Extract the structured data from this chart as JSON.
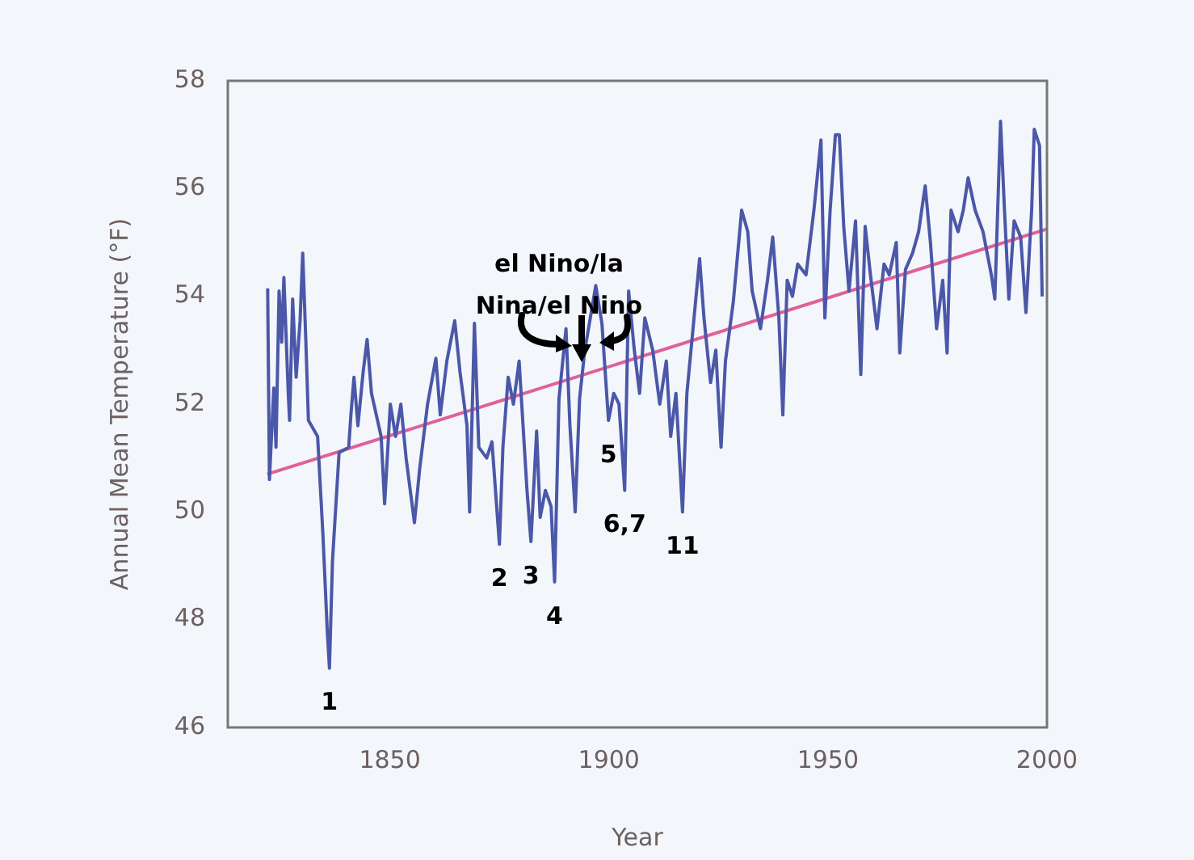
{
  "chart_data": {
    "type": "line",
    "xlabel": "Year",
    "ylabel": "Annual Mean Temperature (°F)",
    "xlim": [
      1813,
      2000
    ],
    "ylim": [
      46,
      58
    ],
    "xticks": [
      1850,
      1900,
      1950,
      2000
    ],
    "yticks": [
      46,
      48,
      50,
      52,
      54,
      56,
      58
    ],
    "legend": false,
    "series": [
      {
        "color": "#4b57a8",
        "x": [
          1822.1,
          1822.5,
          1823.5,
          1824,
          1824.7,
          1825.3,
          1825.8,
          1826.8,
          1827.1,
          1827.8,
          1828.6,
          1829.5,
          1830.1,
          1830.8,
          1831.4,
          1833.5,
          1834.7,
          1835.7,
          1836.2,
          1836.9,
          1838.4,
          1840.6,
          1841.1,
          1841.8,
          1842.7,
          1843.9,
          1844.8,
          1845.8,
          1848,
          1848.8,
          1850.1,
          1851.3,
          1852.5,
          1853.7,
          1855.6,
          1856.8,
          1858.6,
          1860.5,
          1861.5,
          1863,
          1864.8,
          1866,
          1867.6,
          1868.2,
          1869.3,
          1870.3,
          1872.1,
          1873.3,
          1875,
          1875.8,
          1877,
          1878.2,
          1879.5,
          1881.3,
          1882.2,
          1883.5,
          1884.3,
          1885.5,
          1886.8,
          1887.6,
          1888.6,
          1890.2,
          1891.1,
          1892.3,
          1893.3,
          1894.5,
          1897,
          1898.4,
          1899.9,
          1901.1,
          1902.3,
          1903.6,
          1904.5,
          1905.8,
          1907,
          1908.2,
          1910,
          1911.6,
          1913.1,
          1914.1,
          1915.3,
          1916.8,
          1917.8,
          1919.2,
          1920.7,
          1921.7,
          1923.2,
          1924.4,
          1925.6,
          1926.6,
          1928.4,
          1930.3,
          1931.7,
          1932.7,
          1934.6,
          1936.2,
          1937.4,
          1938.8,
          1939.7,
          1940.7,
          1941.9,
          1943.1,
          1945,
          1946.8,
          1948.4,
          1949.3,
          1950.5,
          1951.7,
          1952.6,
          1953.6,
          1954.8,
          1956.3,
          1957.5,
          1958.5,
          1959.7,
          1961.2,
          1962.8,
          1964,
          1965.6,
          1966.4,
          1967.7,
          1969.3,
          1970.7,
          1972.2,
          1973.4,
          1974.8,
          1976.2,
          1977.2,
          1978.1,
          1979.7,
          1980.9,
          1982,
          1983.6,
          1985.4,
          1987.3,
          1988.1,
          1989.4,
          1990.3,
          1991.3,
          1992.5,
          1994,
          1995.2,
          1996.5,
          1997.1,
          1998.3,
          1998.9
        ],
        "values": [
          54.15,
          50.6,
          52.3,
          51.2,
          54.1,
          53.15,
          54.35,
          52.2,
          51.7,
          53.95,
          52.5,
          53.55,
          54.8,
          53.2,
          51.7,
          51.4,
          49.6,
          47.8,
          47.1,
          49.1,
          51.1,
          51.2,
          51.8,
          52.5,
          51.6,
          52.6,
          53.2,
          52.2,
          51.4,
          50.15,
          52.0,
          51.4,
          52.0,
          51.0,
          49.8,
          50.8,
          52.0,
          52.85,
          51.8,
          52.8,
          53.55,
          52.6,
          51.6,
          50.0,
          53.5,
          51.2,
          51.0,
          51.3,
          49.4,
          51.2,
          52.5,
          52.0,
          52.8,
          50.4,
          49.45,
          51.5,
          49.9,
          50.4,
          50.1,
          48.7,
          52.1,
          53.4,
          51.6,
          50.0,
          52.1,
          53.0,
          54.2,
          53.5,
          51.7,
          52.2,
          52.0,
          50.4,
          54.1,
          53.0,
          52.2,
          53.6,
          53.0,
          52.0,
          52.8,
          51.4,
          52.2,
          50.0,
          52.2,
          53.4,
          54.7,
          53.6,
          52.4,
          53.0,
          51.2,
          52.8,
          53.9,
          55.6,
          55.2,
          54.1,
          53.4,
          54.3,
          55.1,
          53.6,
          51.8,
          54.3,
          54.0,
          54.6,
          54.4,
          55.6,
          56.9,
          53.6,
          55.6,
          57.0,
          57.0,
          55.3,
          54.1,
          55.4,
          52.55,
          55.3,
          54.4,
          53.4,
          54.6,
          54.4,
          55.0,
          52.95,
          54.5,
          54.8,
          55.2,
          56.05,
          55.0,
          53.4,
          54.3,
          52.95,
          55.6,
          55.2,
          55.6,
          56.2,
          55.6,
          55.2,
          54.4,
          53.95,
          57.25,
          55.6,
          53.95,
          55.4,
          55.1,
          53.7,
          55.6,
          57.1,
          56.8,
          54.0
        ]
      },
      {
        "color": "#e0609a",
        "x": [
          1822,
          2000
        ],
        "values": [
          50.7,
          55.25
        ]
      }
    ],
    "annotations": [
      "el Nino/la\nNina/el Nino",
      {
        "text": "1",
        "x": 1836.2,
        "y": 47.1
      },
      {
        "text": "2",
        "x": 1875,
        "y": 49.4
      },
      {
        "text": "3",
        "x": 1882.2,
        "y": 49.45
      },
      {
        "text": "4",
        "x": 1887.6,
        "y": 48.7
      },
      {
        "text": "5",
        "x": 1899.9,
        "y": 51.7
      },
      {
        "text": "6,7",
        "x": 1903.6,
        "y": 50.4
      },
      {
        "text": "11",
        "x": 1916.8,
        "y": 50.0
      }
    ]
  }
}
